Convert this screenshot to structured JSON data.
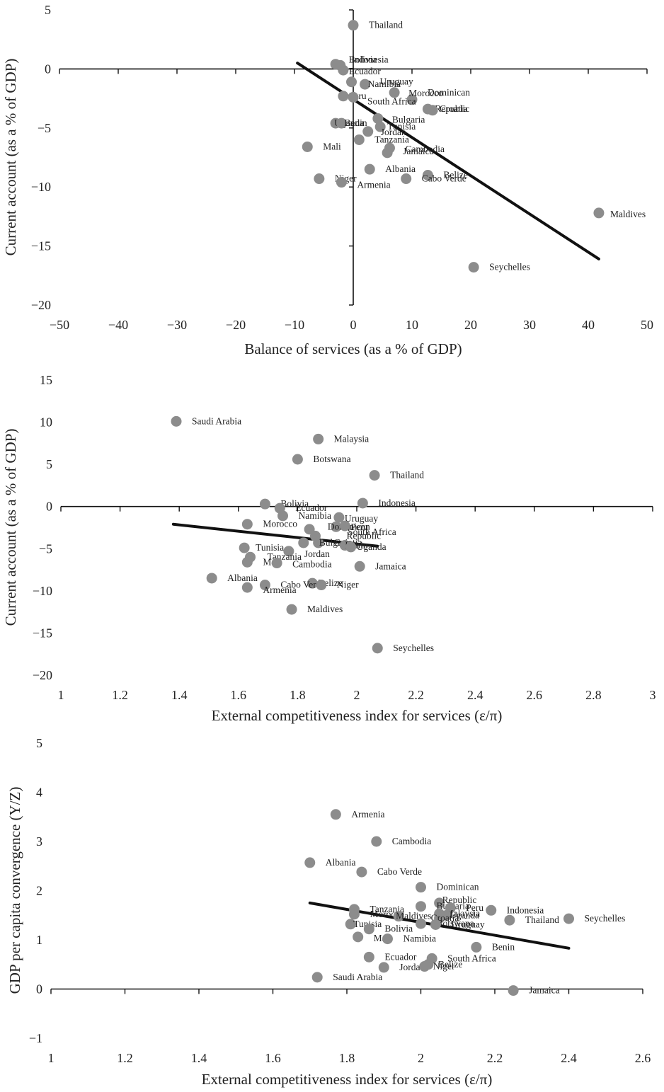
{
  "chart_data": [
    {
      "type": "scatter",
      "xlabel": "Balance of services (as a % of GDP)",
      "ylabel": "Current account (as a % of GDP)",
      "xlim": [
        -50,
        50
      ],
      "ylim": [
        -20,
        5
      ],
      "xticks": [
        -50,
        -40,
        -30,
        -20,
        -10,
        0,
        10,
        20,
        30,
        40,
        50
      ],
      "yticks": [
        5,
        0,
        -5,
        -10,
        -15,
        -20
      ],
      "xtick_labels": [
        "−50",
        "−40",
        "−30",
        "−20",
        "−10",
        "0",
        "10",
        "20",
        "30",
        "40",
        "50"
      ],
      "ytick_labels": [
        "5",
        "0",
        "−5",
        "−10",
        "−15",
        "−20"
      ],
      "axes_cross_at_zero": true,
      "grid": false,
      "trendline": {
        "x": [
          -9.5,
          41.8
        ],
        "y": [
          0.5,
          -16.1
        ]
      },
      "points": [
        {
          "label": "Thailand",
          "x": 0,
          "y": 3.7
        },
        {
          "label": "Indonesia",
          "x": -3,
          "y": 0.4
        },
        {
          "label": "Bolivia",
          "x": -2.2,
          "y": 0.3
        },
        {
          "label": "Ecuador",
          "x": -1.7,
          "y": -0.1
        },
        {
          "label": "Namibia",
          "x": 2,
          "y": -1.3
        },
        {
          "label": "Uruguay",
          "x": -0.3,
          "y": -1.1
        },
        {
          "label": "Dominican",
          "x": 10,
          "y": -2.6
        },
        {
          "label": "Morocco",
          "x": 7,
          "y": -2
        },
        {
          "label": "Peru",
          "x": -1.7,
          "y": -2.3
        },
        {
          "label": "South Africa",
          "x": 0,
          "y": -2.4
        },
        {
          "label": "Republic",
          "x": 12.7,
          "y": -3.4
        },
        {
          "label": "Croatia",
          "x": 13.5,
          "y": -3.5
        },
        {
          "label": "Bulgaria",
          "x": 4.2,
          "y": -4.2
        },
        {
          "label": "Uganda",
          "x": -3,
          "y": -4.6
        },
        {
          "label": "Benin",
          "x": -2,
          "y": -4.6
        },
        {
          "label": "Tunisia",
          "x": 4.6,
          "y": -4.9
        },
        {
          "label": "Jordan",
          "x": 2.5,
          "y": -5.3
        },
        {
          "label": "Tanzania",
          "x": 1,
          "y": -6
        },
        {
          "label": "Mali",
          "x": -7.8,
          "y": -6.6
        },
        {
          "label": "Cambodia",
          "x": 6.2,
          "y": -6.7
        },
        {
          "label": "Jamaica",
          "x": 5.8,
          "y": -7.1
        },
        {
          "label": "Albania",
          "x": 2.8,
          "y": -8.5
        },
        {
          "label": "Belize",
          "x": 12.7,
          "y": -9
        },
        {
          "label": "Niger",
          "x": -5.8,
          "y": -9.3
        },
        {
          "label": "Cabo Verde",
          "x": 9,
          "y": -9.3
        },
        {
          "label": "Armenia",
          "x": -2,
          "y": -9.6
        },
        {
          "label": "Maldives",
          "x": 41.8,
          "y": -12.2
        },
        {
          "label": "Seychelles",
          "x": 20.5,
          "y": -16.8
        }
      ]
    },
    {
      "type": "scatter",
      "xlabel": "External competitiveness index for services (ε/π)",
      "ylabel": "Current account (as a % of GDP)",
      "xlim": [
        1,
        3
      ],
      "ylim": [
        -20,
        15
      ],
      "xticks": [
        1,
        1.2,
        1.4,
        1.6,
        1.8,
        2,
        2.2,
        2.4,
        2.6,
        2.8,
        3
      ],
      "yticks": [
        15,
        10,
        5,
        0,
        -5,
        -10,
        -15,
        -20
      ],
      "xtick_labels": [
        "1",
        "1.2",
        "1.4",
        "1.6",
        "1.8",
        "2",
        "2.2",
        "2.4",
        "2.6",
        "2.8",
        "3"
      ],
      "ytick_labels": [
        "15",
        "10",
        "5",
        "0",
        "−5",
        "−10",
        "−15",
        "−20"
      ],
      "axes_cross_at_zero": true,
      "grid": false,
      "trendline": {
        "x": [
          1.38,
          2.07
        ],
        "y": [
          -2.1,
          -4.7
        ]
      },
      "points": [
        {
          "label": "Saudi Arabia",
          "x": 1.39,
          "y": 10.1
        },
        {
          "label": "Malaysia",
          "x": 1.87,
          "y": 8
        },
        {
          "label": "Botswana",
          "x": 1.8,
          "y": 5.6
        },
        {
          "label": "Thailand",
          "x": 2.06,
          "y": 3.7
        },
        {
          "label": "Bolivia",
          "x": 1.69,
          "y": 0.3
        },
        {
          "label": "Indonesia",
          "x": 2.02,
          "y": 0.4
        },
        {
          "label": "Ecuador",
          "x": 1.74,
          "y": -0.2
        },
        {
          "label": "Namibia",
          "x": 1.75,
          "y": -1.1
        },
        {
          "label": "Uruguay",
          "x": 1.94,
          "y": -1.3
        },
        {
          "label": "Dominican",
          "x": 1.93,
          "y": -2.4
        },
        {
          "label": "Peru",
          "x": 1.96,
          "y": -2.3
        },
        {
          "label": "Morocco",
          "x": 1.63,
          "y": -2.1
        },
        {
          "label": "South Africa",
          "x": 1.84,
          "y": -2.7
        },
        {
          "label": "Republic",
          "x": 1.86,
          "y": -3.5
        },
        {
          "label": "Croatia",
          "x": 1.87,
          "y": -4.3
        },
        {
          "label": "Bulgaria",
          "x": 1.82,
          "y": -4.3
        },
        {
          "label": "Benin",
          "x": 1.96,
          "y": -4.6
        },
        {
          "label": "Uganda",
          "x": 1.98,
          "y": -4.8
        },
        {
          "label": "Tunisia",
          "x": 1.62,
          "y": -4.9
        },
        {
          "label": "Jordan",
          "x": 1.77,
          "y": -5.3
        },
        {
          "label": "Tanzania",
          "x": 1.64,
          "y": -6
        },
        {
          "label": "Mali",
          "x": 1.63,
          "y": -6.6
        },
        {
          "label": "Cambodia",
          "x": 1.73,
          "y": -6.7
        },
        {
          "label": "Jamaica",
          "x": 2.01,
          "y": -7.1
        },
        {
          "label": "Albania",
          "x": 1.51,
          "y": -8.5
        },
        {
          "label": "Belize",
          "x": 1.85,
          "y": -9.1
        },
        {
          "label": "Cabo Verde",
          "x": 1.69,
          "y": -9.3
        },
        {
          "label": "Niger",
          "x": 1.88,
          "y": -9.3
        },
        {
          "label": "Armenia",
          "x": 1.63,
          "y": -9.6
        },
        {
          "label": "Maldives",
          "x": 1.78,
          "y": -12.2
        },
        {
          "label": "Seychelles",
          "x": 2.07,
          "y": -16.8
        }
      ]
    },
    {
      "type": "scatter",
      "xlabel": "External competitiveness index for services (ε/π)",
      "ylabel": "GDP per capita convergence (Y/Z)",
      "xlim": [
        1,
        2.6
      ],
      "ylim": [
        -1,
        5
      ],
      "xticks": [
        1,
        1.2,
        1.4,
        1.6,
        1.8,
        2,
        2.2,
        2.4,
        2.6
      ],
      "yticks": [
        5,
        4,
        3,
        2,
        1,
        0,
        -1
      ],
      "xtick_labels": [
        "1",
        "1.2",
        "1.4",
        "1.6",
        "1.8",
        "2",
        "2.2",
        "2.4",
        "2.6"
      ],
      "ytick_labels": [
        "5",
        "4",
        "3",
        "2",
        "1",
        "0",
        "−1"
      ],
      "axes_cross_at_zero": true,
      "grid": false,
      "trendline": {
        "x": [
          1.7,
          2.4
        ],
        "y": [
          1.75,
          0.83
        ]
      },
      "points": [
        {
          "label": "Armenia",
          "x": 1.77,
          "y": 3.55
        },
        {
          "label": "Cambodia",
          "x": 1.88,
          "y": 3
        },
        {
          "label": "Albania",
          "x": 1.7,
          "y": 2.57
        },
        {
          "label": "Cabo Verde",
          "x": 1.84,
          "y": 2.38
        },
        {
          "label": "Dominican",
          "x": 2,
          "y": 2.07
        },
        {
          "label": "Republic",
          "x": 2.05,
          "y": 1.75
        },
        {
          "label": "Bulgaria",
          "x": 2,
          "y": 1.68
        },
        {
          "label": "Peru",
          "x": 2.08,
          "y": 1.65
        },
        {
          "label": "Indonesia",
          "x": 2.19,
          "y": 1.6
        },
        {
          "label": "Tanzania",
          "x": 1.82,
          "y": 1.62
        },
        {
          "label": "Morocco",
          "x": 1.82,
          "y": 1.52
        },
        {
          "label": "Maldives",
          "x": 1.94,
          "y": 1.48
        },
        {
          "label": "Malaysia",
          "x": 2.05,
          "y": 1.53
        },
        {
          "label": "Uganda",
          "x": 2.07,
          "y": 1.5
        },
        {
          "label": "Croatia",
          "x": 2.05,
          "y": 1.44
        },
        {
          "label": "Thailand",
          "x": 2.24,
          "y": 1.4
        },
        {
          "label": "Seychelles",
          "x": 2.4,
          "y": 1.43
        },
        {
          "label": "Botswana",
          "x": 2,
          "y": 1.33
        },
        {
          "label": "Uruguay",
          "x": 2.04,
          "y": 1.31
        },
        {
          "label": "Tunisia",
          "x": 1.81,
          "y": 1.32
        },
        {
          "label": "Bolivia",
          "x": 1.86,
          "y": 1.22
        },
        {
          "label": "Mali",
          "x": 1.83,
          "y": 1.06
        },
        {
          "label": "Namibia",
          "x": 1.91,
          "y": 1.02
        },
        {
          "label": "Benin",
          "x": 2.15,
          "y": 0.85
        },
        {
          "label": "Ecuador",
          "x": 1.86,
          "y": 0.65
        },
        {
          "label": "South Africa",
          "x": 2.03,
          "y": 0.62
        },
        {
          "label": "Jordan",
          "x": 1.9,
          "y": 0.44
        },
        {
          "label": "Niger",
          "x": 2.01,
          "y": 0.46
        },
        {
          "label": "Belize",
          "x": 2.02,
          "y": 0.5
        },
        {
          "label": "Saudi Arabia",
          "x": 1.72,
          "y": 0.24
        },
        {
          "label": "Jamaica",
          "x": 2.25,
          "y": -0.03
        }
      ]
    }
  ]
}
